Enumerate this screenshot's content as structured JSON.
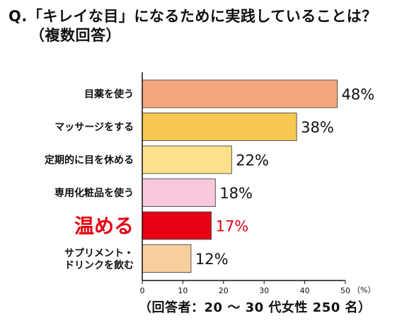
{
  "title": {
    "line1": "Q.「キレイな目」になるために実践していることは？",
    "line2": "（複数回答）"
  },
  "footnote": "（回答者：20 ～ 30 代女性 250 名）",
  "chart_data": {
    "type": "bar",
    "orientation": "horizontal",
    "categories": [
      [
        "目薬を使う"
      ],
      [
        "マッサージをする"
      ],
      [
        "定期的に目を休める"
      ],
      [
        "専用化粧品を使う"
      ],
      [
        "温める"
      ],
      [
        "サプリメント・",
        "ドリンクを飲む"
      ]
    ],
    "values": [
      48,
      38,
      22,
      18,
      17,
      12
    ],
    "value_labels": [
      "48%",
      "38%",
      "22%",
      "18%",
      "17%",
      "12%"
    ],
    "bar_colors": [
      "#f4a77c",
      "#f8c850",
      "#fde08a",
      "#f8c8dc",
      "#e60012",
      "#f7cf9c"
    ],
    "highlight_index": 4,
    "highlight_color": "#e60012",
    "xlim": [
      0,
      50
    ],
    "xticks": [
      0,
      10,
      20,
      30,
      40,
      50
    ],
    "xunit": "（%）",
    "grid": false
  }
}
